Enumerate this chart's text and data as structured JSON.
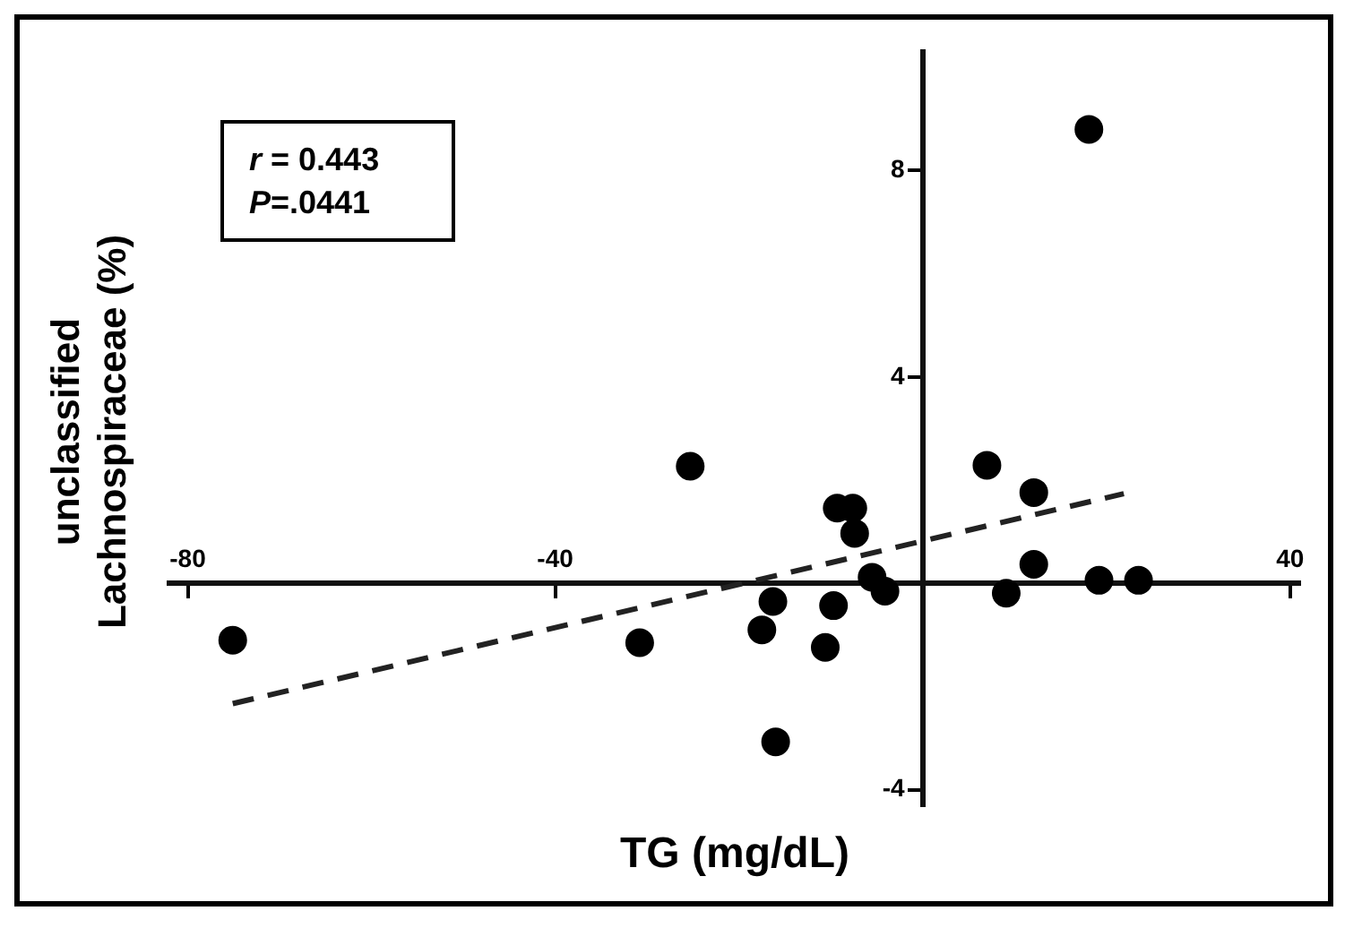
{
  "chart_data": {
    "type": "scatter",
    "xlabel": "TG (mg/dL)",
    "ylabel": "unclassified Lachnospiraceae (%)",
    "annotations": [
      "r = 0.443",
      "P=.0441"
    ],
    "xlim": [
      -82,
      41
    ],
    "ylim": [
      -4.3,
      10.3
    ],
    "xticks": [
      -80,
      -40,
      40
    ],
    "yticks": [
      -4,
      4,
      8
    ],
    "marker": "circle",
    "series": [
      {
        "color": "#000000",
        "x": [
          -75.1,
          -30.8,
          -25.3,
          -17.5,
          -16.3,
          -16.0,
          -10.6,
          -9.7,
          -9.3,
          -7.6,
          -7.4,
          -5.5,
          -4.1,
          7.0,
          9.1,
          12.1,
          12.1,
          18.1,
          19.2,
          23.5
        ],
        "values": [
          -1.1,
          -1.15,
          2.27,
          -0.9,
          -0.35,
          -3.07,
          -1.24,
          -0.43,
          1.46,
          1.46,
          0.97,
          0.12,
          -0.15,
          2.29,
          -0.19,
          1.76,
          0.37,
          8.8,
          0.06,
          0.06
        ]
      },
      {
        "type": "line",
        "color": "#222222",
        "line_style": "dashed",
        "marker": "none",
        "x": [
          -75.1,
          21.9
        ],
        "values": [
          -2.33,
          1.74
        ]
      }
    ]
  }
}
